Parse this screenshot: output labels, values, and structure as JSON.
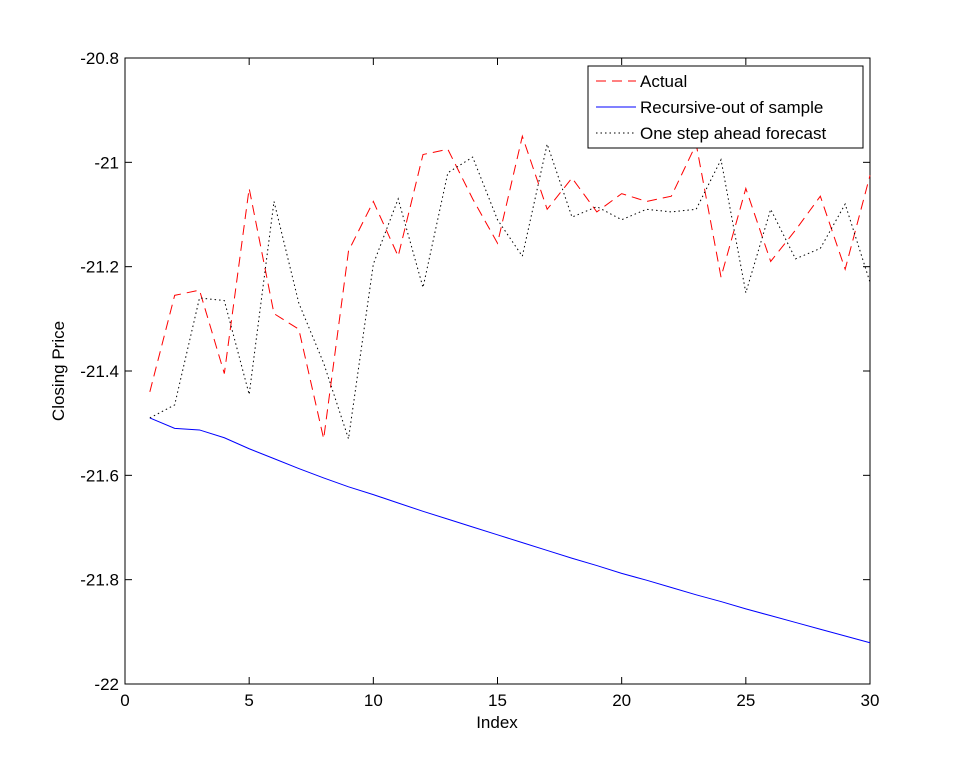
{
  "chart_data": {
    "type": "line",
    "title": "",
    "xlabel": "Index",
    "ylabel": "Closing Price",
    "xlim": [
      0,
      30
    ],
    "ylim": [
      -22,
      -20.8
    ],
    "xticks": [
      0,
      5,
      10,
      15,
      20,
      25,
      30
    ],
    "yticks": [
      -22,
      -21.8,
      -21.6,
      -21.4,
      -21.2,
      -21,
      -20.8
    ],
    "x_tick_labels": [
      "0",
      "5",
      "10",
      "15",
      "20",
      "25",
      "30"
    ],
    "y_tick_labels": [
      "-22",
      "-21.8",
      "-21.6",
      "-21.4",
      "-21.2",
      "-21",
      "-20.8"
    ],
    "grid": false,
    "legend_position": "top-right",
    "x": [
      1,
      2,
      3,
      4,
      5,
      6,
      7,
      8,
      9,
      10,
      11,
      12,
      13,
      14,
      15,
      16,
      17,
      18,
      19,
      20,
      21,
      22,
      23,
      24,
      25,
      26,
      27,
      28,
      29,
      30
    ],
    "series": [
      {
        "name": "Actual",
        "color": "#ff0000",
        "style": "dashed",
        "values": [
          -21.44,
          -21.255,
          -21.245,
          -21.405,
          -21.05,
          -21.29,
          -21.32,
          -21.53,
          -21.17,
          -21.075,
          -21.18,
          -20.985,
          -20.975,
          -21.07,
          -21.155,
          -20.95,
          -21.09,
          -21.03,
          -21.095,
          -21.06,
          -21.075,
          -21.065,
          -20.965,
          -21.22,
          -21.05,
          -21.19,
          -21.13,
          -21.065,
          -21.205,
          -21.025
        ]
      },
      {
        "name": "Recursive-out of sample",
        "color": "#0000ff",
        "style": "solid",
        "values": [
          -21.49,
          -21.51,
          -21.513,
          -21.528,
          -21.549,
          -21.568,
          -21.587,
          -21.605,
          -21.622,
          -21.637,
          -21.653,
          -21.669,
          -21.684,
          -21.699,
          -21.714,
          -21.729,
          -21.744,
          -21.759,
          -21.773,
          -21.788,
          -21.801,
          -21.815,
          -21.829,
          -21.842,
          -21.856,
          -21.869,
          -21.882,
          -21.895,
          -21.908,
          -21.921
        ]
      },
      {
        "name": "One step ahead forecast",
        "color": "#000000",
        "style": "dotted",
        "values": [
          -21.49,
          -21.465,
          -21.26,
          -21.265,
          -21.445,
          -21.075,
          -21.27,
          -21.385,
          -21.53,
          -21.195,
          -21.07,
          -21.24,
          -21.02,
          -20.99,
          -21.11,
          -21.18,
          -20.965,
          -21.105,
          -21.085,
          -21.11,
          -21.09,
          -21.095,
          -21.09,
          -20.995,
          -21.25,
          -21.09,
          -21.185,
          -21.165,
          -21.08,
          -21.23
        ]
      }
    ]
  }
}
